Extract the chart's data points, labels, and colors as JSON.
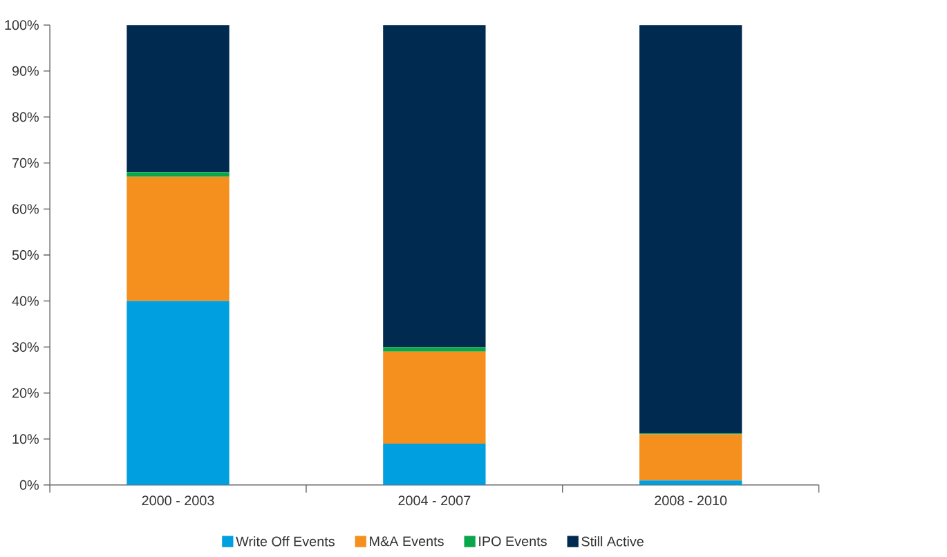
{
  "chart_data": {
    "type": "bar",
    "stacked": true,
    "categories": [
      "2000 - 2003",
      "2004 - 2007",
      "2008 - 2010"
    ],
    "series": [
      {
        "name": "Write Off Events",
        "color": "#009fdf",
        "values": [
          40,
          9,
          1
        ]
      },
      {
        "name": "M&A Events",
        "color": "#f5901e",
        "values": [
          27,
          20,
          10
        ]
      },
      {
        "name": "IPO Events",
        "color": "#0aa64a",
        "values": [
          1,
          1,
          0.2
        ]
      },
      {
        "name": "Still Active",
        "color": "#002a50",
        "values": [
          32,
          70,
          88.8
        ]
      }
    ],
    "ylim": [
      0,
      100
    ],
    "yticks": [
      {
        "value": 0,
        "label": "0%"
      },
      {
        "value": 10,
        "label": "10%"
      },
      {
        "value": 20,
        "label": "20%"
      },
      {
        "value": 30,
        "label": "30%"
      },
      {
        "value": 40,
        "label": "40%"
      },
      {
        "value": 50,
        "label": "50%"
      },
      {
        "value": 60,
        "label": "60%"
      },
      {
        "value": 70,
        "label": "70%"
      },
      {
        "value": 80,
        "label": "80%"
      },
      {
        "value": 90,
        "label": "90%"
      },
      {
        "value": 100,
        "label": "100%"
      }
    ],
    "grid": false,
    "legend": "bottom"
  }
}
